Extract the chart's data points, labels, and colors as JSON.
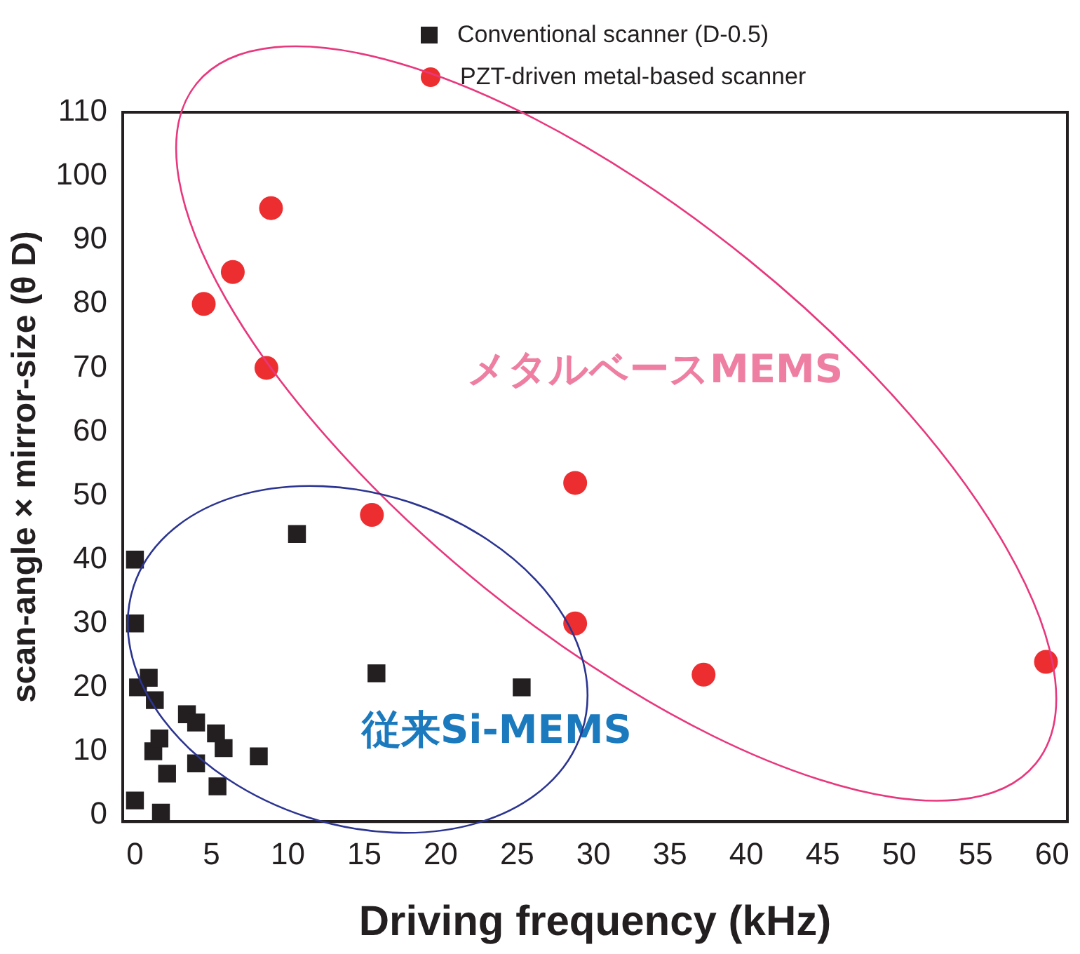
{
  "chart_data": {
    "type": "scatter",
    "xlabel": "Driving frequency (kHz)",
    "ylabel": "scan-angle × mirror-size (θ D)",
    "xlim": [
      -0.8,
      61
    ],
    "ylim": [
      -1,
      110
    ],
    "xticks": [
      0,
      5,
      10,
      15,
      20,
      25,
      30,
      35,
      40,
      45,
      50,
      55,
      60
    ],
    "yticks": [
      0,
      10,
      20,
      30,
      40,
      50,
      60,
      70,
      80,
      90,
      100,
      110
    ],
    "grid": false,
    "legend": "top",
    "series": [
      {
        "name": "Conventional scanner (D-0.5)",
        "color": "#231f20",
        "marker": "square",
        "x": [
          0,
          0,
          0.2,
          0.9,
          1.3,
          1.2,
          1.6,
          2.1,
          3.4,
          4.0,
          5.3,
          5.8,
          4.0,
          5.4,
          1.7,
          0,
          8.1,
          10.6,
          15.8,
          25.3
        ],
        "values": [
          40,
          30,
          20,
          21.5,
          18,
          10,
          12,
          6.5,
          15.8,
          14.5,
          12.8,
          10.5,
          8.1,
          4.5,
          0.4,
          2.3,
          9.2,
          44,
          22.2,
          20
        ]
      },
      {
        "name": "PZT-driven metal-based scanner",
        "color": "#ed2e31",
        "marker": "circle",
        "x": [
          4.5,
          6.4,
          8.9,
          8.6,
          15.5,
          28.8,
          28.8,
          37.2,
          59.6
        ],
        "values": [
          80,
          85,
          95,
          70,
          47,
          52,
          30,
          22,
          24
        ]
      }
    ],
    "annotations": [
      "メタルベースMEMS",
      "従来Si-MEMS"
    ]
  }
}
